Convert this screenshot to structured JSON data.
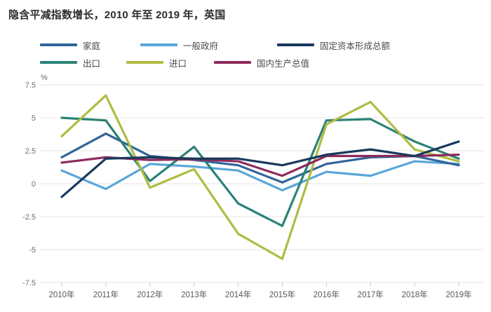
{
  "title": "隐含平减指数增长，2010 年至 2019 年，英国",
  "chart_data": {
    "type": "line",
    "title": "隐含平减指数增长，2010 年至 2019 年，英国",
    "xlabel": "",
    "ylabel": "%",
    "ylim": [
      -7.5,
      7.5
    ],
    "grid": true,
    "legend_position": "top",
    "y_ticks": [
      7.5,
      5,
      2.5,
      0,
      -2.5,
      -5,
      -7.5
    ],
    "y_tick_labels": [
      "7.5",
      "5",
      "2.5",
      "0",
      "-2.5",
      "-5",
      "-7.5"
    ],
    "categories": [
      "2010年",
      "2011年",
      "2012年",
      "2013年",
      "2014年",
      "2015年",
      "2016年",
      "2017年",
      "2018年",
      "2019年"
    ],
    "series": [
      {
        "name": "家庭",
        "color": "#31659a",
        "values": [
          2.0,
          3.8,
          2.1,
          1.8,
          1.4,
          0.1,
          1.5,
          2.0,
          2.1,
          1.4
        ]
      },
      {
        "name": "一般政府",
        "color": "#58a6d8",
        "values": [
          1.0,
          -0.4,
          1.5,
          1.3,
          1.0,
          -0.5,
          0.9,
          0.6,
          1.7,
          1.5
        ]
      },
      {
        "name": "固定资本形成总额",
        "color": "#18395c",
        "values": [
          -1.0,
          1.9,
          2.0,
          1.9,
          1.9,
          1.4,
          2.2,
          2.6,
          2.1,
          3.2
        ]
      },
      {
        "name": "出口",
        "color": "#2b8276",
        "values": [
          5.0,
          4.8,
          0.2,
          2.8,
          -1.5,
          -3.2,
          4.8,
          4.9,
          3.2,
          1.9
        ]
      },
      {
        "name": "进口",
        "color": "#afbc42",
        "values": [
          3.6,
          6.7,
          -0.3,
          1.1,
          -3.8,
          -5.7,
          4.5,
          6.2,
          2.6,
          1.7
        ]
      },
      {
        "name": "国内生产总值",
        "color": "#8e2a5c",
        "values": [
          1.6,
          2.0,
          1.8,
          1.85,
          1.7,
          0.6,
          2.1,
          2.1,
          2.1,
          2.2
        ]
      }
    ]
  }
}
